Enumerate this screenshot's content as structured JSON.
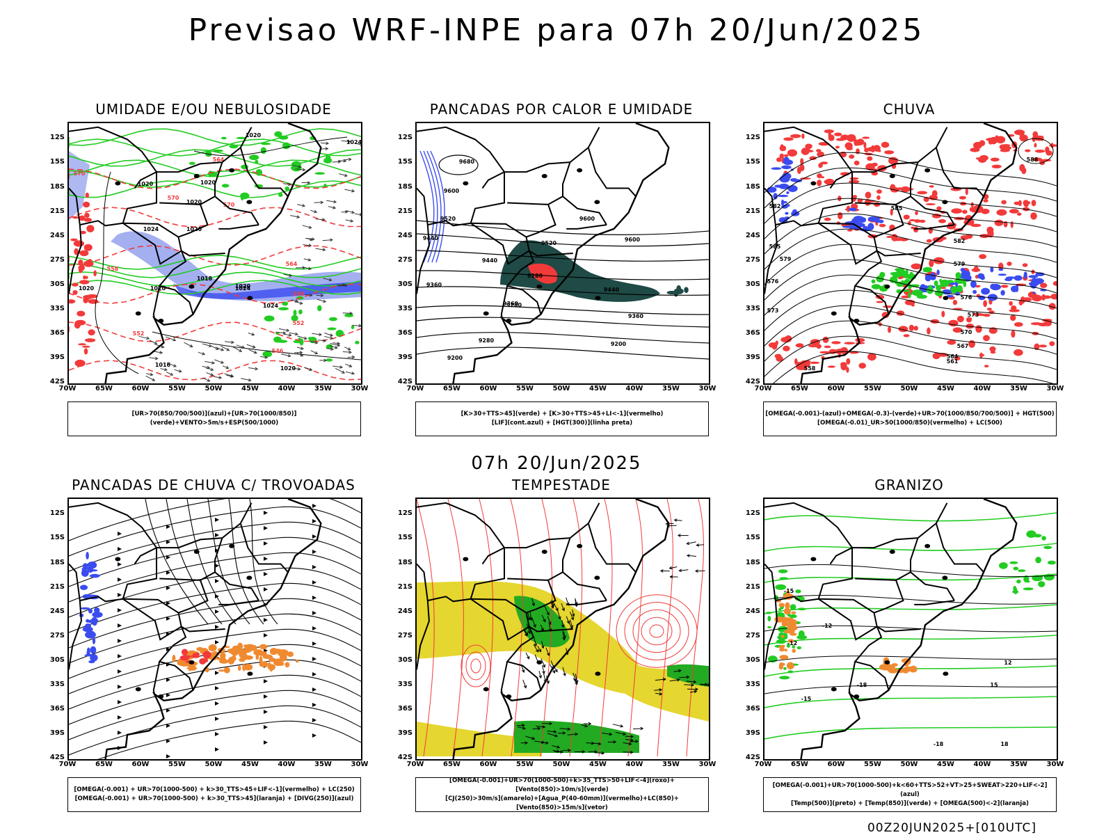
{
  "title": "Previsao WRF-INPE  para 07h 20/Jun/2025",
  "subtitle": "07h 20/Jun/2025",
  "footer": "00Z20JUN2025+[010UTC]",
  "lat_labels": [
    "12S",
    "15S",
    "18S",
    "21S",
    "24S",
    "27S",
    "30S",
    "33S",
    "36S",
    "39S",
    "42S"
  ],
  "lon_labels": [
    "70W",
    "65W",
    "60W",
    "55W",
    "50W",
    "45W",
    "40W",
    "35W",
    "30W"
  ],
  "colors": {
    "blue": "#3a4cf0",
    "light_blue": "#9aa6ee",
    "green": "#22cc22",
    "red": "#f23a3a",
    "dark_teal": "#1f4a45",
    "yellow": "#e5d630",
    "orange": "#f08a30",
    "dark_green": "#22aa22"
  },
  "panels": [
    {
      "title": "UMIDADE E/OU NEBULOSIDADE",
      "legend": [
        "[UR>70(850/700/500)](azul)+[UR>70(1000/850)](verde)+VENTO>5m/s+ESP(500/1000)"
      ],
      "contour_labels": [
        "1020",
        "1024",
        "1020",
        "1020",
        "1020",
        "1024",
        "1020",
        "1018",
        "1020",
        "1024",
        "1020",
        "1024",
        "1020",
        "1016",
        "1020"
      ],
      "red_labels": [
        "570",
        "570",
        "564",
        "558",
        "552",
        "552",
        "546",
        "558",
        "570",
        "564"
      ]
    },
    {
      "title": "PANCADAS POR CALOR E UMIDADE",
      "legend": [
        "[K>30+TTS>45](verde) + [K>30+TTS>45+LI<-1](vermelho)",
        "[LIF](cont.azul) + [HGT(300)](linha preta)"
      ],
      "contour_labels": [
        "9680",
        "9600",
        "9520",
        "9440",
        "9520",
        "9600",
        "9600",
        "9440",
        "9360",
        "9360",
        "9280",
        "9440",
        "9360",
        "9280",
        "9280",
        "9200",
        "9200"
      ]
    },
    {
      "title": "CHUVA",
      "legend": [
        "[OMEGA(-0.001)-(azul)+OMEGA(-0.3)-(verde)+UR>70(1000/850/700/500)] + HGT(500)",
        "[OMEGA(-0.01)_UR>50(1000/850)(vermelho) + LC(500)"
      ],
      "contour_labels": [
        "588",
        "585",
        "582",
        "579",
        "576",
        "573",
        "570",
        "567",
        "564",
        "561",
        "558",
        "573",
        "576",
        "579",
        "582",
        "585"
      ]
    },
    {
      "title": "PANCADAS DE CHUVA C/ TROVOADAS",
      "legend": [
        "[OMEGA(-0.001) + UR>70(1000-500) + k>30_TTS>45+LIF<-1](vermelho) + LC(250)",
        "[OMEGA(-0.001) + UR>70(1000-500) + k>30_TTS>45](laranja) + [DIVG(250)](azul)"
      ]
    },
    {
      "title": "TEMPESTADE",
      "legend": [
        "[OMEGA(-0.001)+UR>70(1000-500)+k>35_TTS>50+LIF<-4](roxo)+[Vento(850)>10m/s](verde)",
        "[CJ(250)>30m/s](amarelo)+[Agua_P(40-60mm)](vermelho)+LC(850)+[Vento(850)>15m/s](vetor)"
      ]
    },
    {
      "title": "GRANIZO",
      "legend": [
        "[OMEGA(-0.001)+UR>70(1000-500)+k<60+TTS>52+VT>25+SWEAT>220+LIF<-2](azul)",
        "[Temp(500)](preto) + [Temp(850)](verde) + [OMEGA(500)<-2](laranja)"
      ],
      "contour_labels": [
        "-12",
        "-12",
        "-15",
        "-18",
        "-18",
        "-15",
        "12",
        "15",
        "18"
      ]
    }
  ]
}
